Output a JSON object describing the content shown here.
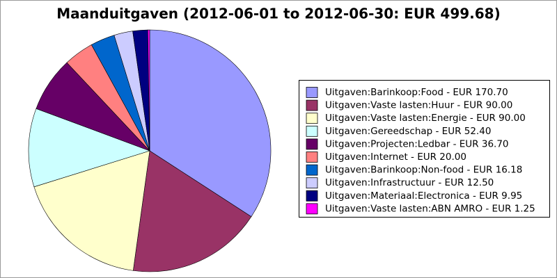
{
  "chart_data": {
    "type": "pie",
    "title": "Maanduitgaven (2012-06-01 to 2012-06-30: EUR 499.68)",
    "categories": [
      "Uitgaven:Barinkoop:Food - EUR 170.70",
      "Uitgaven:Vaste lasten:Huur - EUR 90.00",
      "Uitgaven:Vaste lasten:Energie - EUR 90.00",
      "Uitgaven:Gereedschap - EUR 52.40",
      "Uitgaven:Projecten:Ledbar - EUR 36.70",
      "Uitgaven:Internet - EUR 20.00",
      "Uitgaven:Barinkoop:Non-food - EUR 16.18",
      "Uitgaven:Infrastructuur - EUR 12.50",
      "Uitgaven:Materiaal:Electronica - EUR 9.95",
      "Uitgaven:Vaste lasten:ABN AMRO - EUR 1.25"
    ],
    "values": [
      170.7,
      90.0,
      90.0,
      52.4,
      36.7,
      20.0,
      16.18,
      12.5,
      9.95,
      1.25
    ],
    "colors": [
      "#9999ff",
      "#993366",
      "#ffffcc",
      "#ccffff",
      "#660066",
      "#ff8080",
      "#0066cc",
      "#ccccff",
      "#000080",
      "#ff00ff"
    ],
    "legend": "right"
  }
}
